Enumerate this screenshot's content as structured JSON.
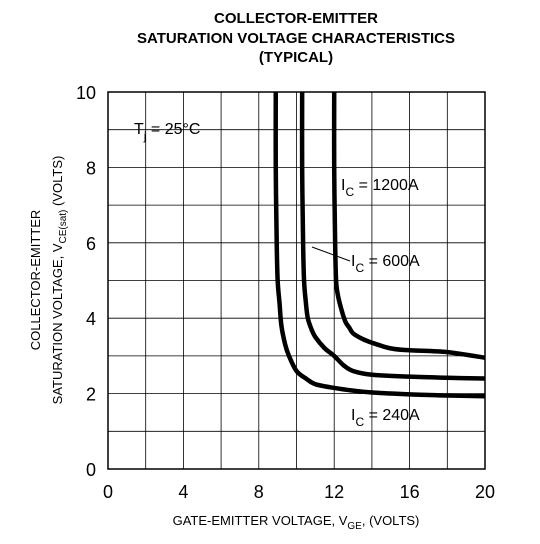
{
  "chart_data": {
    "type": "line",
    "title_lines": [
      "COLLECTOR-EMITTER",
      "SATURATION VOLTAGE CHARACTERISTICS",
      "(TYPICAL)"
    ],
    "xlabel": {
      "text": "GATE-EMITTER VOLTAGE, V",
      "sub": "GE",
      "suffix": ", (VOLTS)"
    },
    "ylabel": {
      "line1": "COLLECTOR-EMITTER",
      "line2": "SATURATION VOLTAGE, V",
      "sub": "CE(sat)",
      "suffix": " (VOLTS)"
    },
    "xlim": [
      0,
      20
    ],
    "ylim": [
      0,
      10
    ],
    "xticks": [
      0,
      4,
      8,
      12,
      16,
      20
    ],
    "yticks": [
      0,
      2,
      4,
      6,
      8,
      10
    ],
    "grid": true,
    "annotations": {
      "tj": {
        "main": "T",
        "sub": "j",
        "rest": " = 25°C"
      }
    },
    "series": [
      {
        "label_main": "I",
        "label_sub": "C",
        "label_rest": " = 240A",
        "x": [
          8.9,
          8.9,
          8.95,
          9.0,
          9.1,
          9.2,
          9.4,
          9.6,
          10.0,
          10.5,
          11.0,
          12.0,
          13.0,
          14.0,
          16.0,
          18.0,
          20.0
        ],
        "y": [
          10.0,
          8.0,
          6.0,
          5.0,
          4.4,
          3.8,
          3.3,
          3.0,
          2.6,
          2.4,
          2.25,
          2.15,
          2.08,
          2.03,
          1.98,
          1.95,
          1.93
        ]
      },
      {
        "label_main": "I",
        "label_sub": "C",
        "label_rest": " = 600A",
        "x": [
          10.3,
          10.3,
          10.35,
          10.4,
          10.5,
          10.6,
          10.8,
          11.0,
          11.5,
          12.0,
          12.5,
          13.0,
          14.0,
          16.0,
          18.0,
          20.0
        ],
        "y": [
          10.0,
          8.0,
          6.0,
          5.0,
          4.4,
          4.0,
          3.7,
          3.5,
          3.2,
          3.0,
          2.75,
          2.6,
          2.5,
          2.45,
          2.42,
          2.4
        ]
      },
      {
        "label_main": "I",
        "label_sub": "C",
        "label_rest": " = 1200A",
        "x": [
          12.0,
          12.0,
          12.05,
          12.1,
          12.2,
          12.4,
          12.6,
          12.8,
          13.0,
          13.5,
          14.0,
          15.0,
          16.0,
          18.0,
          20.0
        ],
        "y": [
          10.0,
          8.0,
          6.0,
          5.0,
          4.6,
          4.2,
          3.9,
          3.75,
          3.6,
          3.45,
          3.35,
          3.2,
          3.15,
          3.1,
          2.95
        ]
      }
    ]
  }
}
